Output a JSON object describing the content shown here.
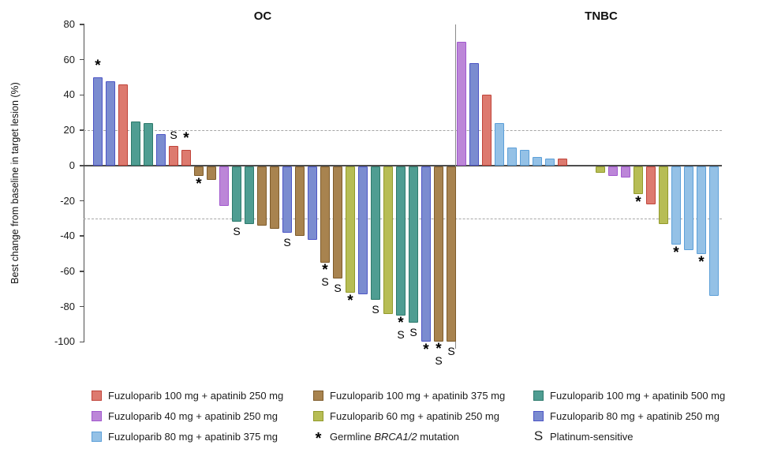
{
  "chart_data": {
    "type": "bar",
    "subtype": "waterfall",
    "ylabel": "Best change from baseline in target lesion (%)",
    "ylim": [
      -100,
      80
    ],
    "yticks": [
      80,
      60,
      40,
      20,
      0,
      -20,
      -40,
      -60,
      -80,
      -100
    ],
    "reference_lines": [
      20,
      -30
    ],
    "grid": "off",
    "arms": {
      "100_250": {
        "label": "Fuzuloparib 100 mg + apatinib 250 mg",
        "fill": "#DD7A6F",
        "stroke": "#C0443A"
      },
      "100_375": {
        "label": "Fuzuloparib 100 mg + apatinib 375 mg",
        "fill": "#A8834F",
        "stroke": "#7E5B2B"
      },
      "100_500": {
        "label": "Fuzuloparib 100 mg + apatinib 500 mg",
        "fill": "#4F9D92",
        "stroke": "#2E7A6C"
      },
      "40_250": {
        "label": "Fuzuloparib 40 mg + apatinib 250 mg",
        "fill": "#BC86D8",
        "stroke": "#A159CE"
      },
      "60_250": {
        "label": "Fuzuloparib 60 mg + apatinib 250 mg",
        "fill": "#B7BD55",
        "stroke": "#929A2B"
      },
      "80_250": {
        "label": "Fuzuloparib 80 mg + apatinib 250 mg",
        "fill": "#7B8CD0",
        "stroke": "#4D55C5"
      },
      "80_375": {
        "label": "Fuzuloparib 80 mg + apatinib 375 mg",
        "fill": "#94C1E6",
        "stroke": "#5C9FD8"
      }
    },
    "markers": {
      "asterisk_symbol": "*",
      "asterisk_meaning_prefix": "Germline ",
      "asterisk_meaning_italic": "BRCA1/2",
      "asterisk_meaning_suffix": " mutation",
      "s_symbol": "S",
      "s_meaning": "Platinum-sensitive"
    },
    "panels": [
      {
        "name": "OC",
        "empty_slots": [],
        "bars": [
          {
            "value": 50,
            "arm": "80_250",
            "mark": "*"
          },
          {
            "value": 48,
            "arm": "80_250",
            "mark": ""
          },
          {
            "value": 46,
            "arm": "100_250",
            "mark": ""
          },
          {
            "value": 25,
            "arm": "100_500",
            "mark": ""
          },
          {
            "value": 24,
            "arm": "100_500",
            "mark": ""
          },
          {
            "value": 18,
            "arm": "80_250",
            "mark": ""
          },
          {
            "value": 11,
            "arm": "100_250",
            "mark": "S"
          },
          {
            "value": 9,
            "arm": "100_250",
            "mark": "*"
          },
          {
            "value": -6,
            "arm": "100_375",
            "mark": "*"
          },
          {
            "value": -8,
            "arm": "100_375",
            "mark": ""
          },
          {
            "value": -23,
            "arm": "40_250",
            "mark": ""
          },
          {
            "value": -32,
            "arm": "100_500",
            "mark": "S"
          },
          {
            "value": -33,
            "arm": "100_500",
            "mark": ""
          },
          {
            "value": -34,
            "arm": "100_375",
            "mark": ""
          },
          {
            "value": -36,
            "arm": "100_375",
            "mark": ""
          },
          {
            "value": -38,
            "arm": "80_250",
            "mark": "S"
          },
          {
            "value": -40,
            "arm": "100_375",
            "mark": ""
          },
          {
            "value": -42,
            "arm": "80_250",
            "mark": ""
          },
          {
            "value": -55,
            "arm": "100_375",
            "mark": "*S"
          },
          {
            "value": -64,
            "arm": "100_375",
            "mark": "S"
          },
          {
            "value": -72,
            "arm": "60_250",
            "mark": "*"
          },
          {
            "value": -73,
            "arm": "80_250",
            "mark": ""
          },
          {
            "value": -76,
            "arm": "100_500",
            "mark": "S"
          },
          {
            "value": -84,
            "arm": "60_250",
            "mark": ""
          },
          {
            "value": -85,
            "arm": "100_500",
            "mark": "*S"
          },
          {
            "value": -89,
            "arm": "100_500",
            "mark": "S"
          },
          {
            "value": -100,
            "arm": "80_250",
            "mark": "*"
          },
          {
            "value": -100,
            "arm": "100_375",
            "mark": "*S"
          },
          {
            "value": -100,
            "arm": "100_375",
            "mark": "S"
          }
        ]
      },
      {
        "name": "TNBC",
        "empty_slots": [
          9,
          10
        ],
        "bars": [
          {
            "value": 70,
            "arm": "40_250",
            "mark": ""
          },
          {
            "value": 58,
            "arm": "80_250",
            "mark": ""
          },
          {
            "value": 40,
            "arm": "100_250",
            "mark": ""
          },
          {
            "value": 24,
            "arm": "80_375",
            "mark": ""
          },
          {
            "value": 10,
            "arm": "80_375",
            "mark": ""
          },
          {
            "value": 9,
            "arm": "80_375",
            "mark": ""
          },
          {
            "value": 5,
            "arm": "80_375",
            "mark": ""
          },
          {
            "value": 4,
            "arm": "80_375",
            "mark": ""
          },
          {
            "value": 4,
            "arm": "100_250",
            "mark": ""
          },
          {
            "value": -4,
            "arm": "60_250",
            "mark": ""
          },
          {
            "value": -6,
            "arm": "40_250",
            "mark": ""
          },
          {
            "value": -7,
            "arm": "40_250",
            "mark": ""
          },
          {
            "value": -16,
            "arm": "60_250",
            "mark": "*"
          },
          {
            "value": -22,
            "arm": "100_250",
            "mark": ""
          },
          {
            "value": -33,
            "arm": "60_250",
            "mark": ""
          },
          {
            "value": -45,
            "arm": "80_375",
            "mark": "*"
          },
          {
            "value": -48,
            "arm": "80_375",
            "mark": ""
          },
          {
            "value": -50,
            "arm": "80_375",
            "mark": "*"
          },
          {
            "value": -74,
            "arm": "80_375",
            "mark": ""
          }
        ]
      }
    ],
    "legend": {
      "columns": [
        {
          "items": [
            {
              "type": "swatch",
              "arm": "100_250"
            },
            {
              "type": "swatch",
              "arm": "40_250"
            },
            {
              "type": "swatch",
              "arm": "80_375"
            }
          ]
        },
        {
          "items": [
            {
              "type": "swatch",
              "arm": "100_375"
            },
            {
              "type": "swatch",
              "arm": "60_250"
            },
            {
              "type": "marker",
              "symbol": "*"
            }
          ]
        },
        {
          "items": [
            {
              "type": "swatch",
              "arm": "100_500"
            },
            {
              "type": "swatch",
              "arm": "80_250"
            },
            {
              "type": "marker",
              "symbol": "S"
            }
          ]
        }
      ]
    }
  }
}
